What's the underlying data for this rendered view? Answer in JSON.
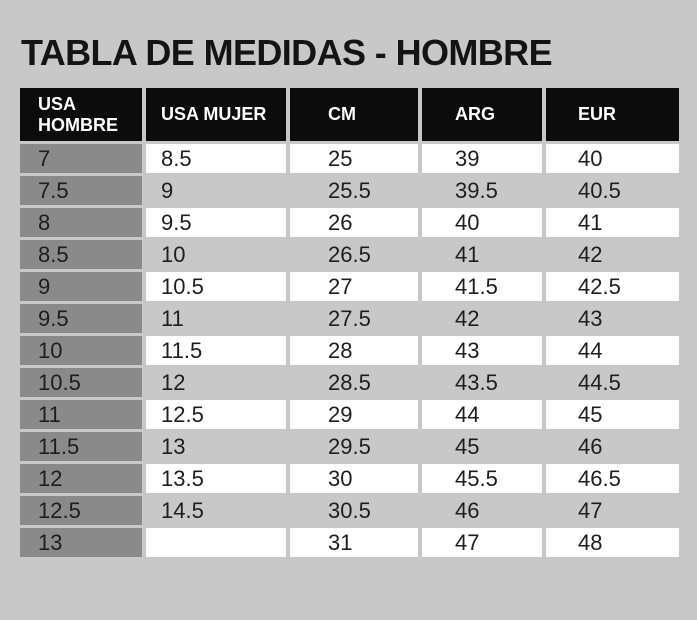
{
  "title": "TABLA DE MEDIDAS - HOMBRE",
  "table": {
    "columns": [
      {
        "label": "USA HOMBRE"
      },
      {
        "label": "USA MUJER"
      },
      {
        "label": "CM"
      },
      {
        "label": "ARG"
      },
      {
        "label": "EUR"
      }
    ],
    "rows": [
      {
        "cells": [
          "7",
          "8.5",
          "25",
          "39",
          "40"
        ]
      },
      {
        "cells": [
          "7.5",
          "9",
          "25.5",
          "39.5",
          "40.5"
        ]
      },
      {
        "cells": [
          "8",
          "9.5",
          "26",
          "40",
          "41"
        ]
      },
      {
        "cells": [
          "8.5",
          "10",
          "26.5",
          "41",
          "42"
        ]
      },
      {
        "cells": [
          "9",
          "10.5",
          "27",
          "41.5",
          "42.5"
        ]
      },
      {
        "cells": [
          "9.5",
          "11",
          "27.5",
          "42",
          "43"
        ]
      },
      {
        "cells": [
          "10",
          "11.5",
          "28",
          "43",
          "44"
        ]
      },
      {
        "cells": [
          "10.5",
          "12",
          "28.5",
          "43.5",
          "44.5"
        ]
      },
      {
        "cells": [
          "11",
          "12.5",
          "29",
          "44",
          "45"
        ]
      },
      {
        "cells": [
          "11.5",
          "13",
          "29.5",
          "45",
          "46"
        ]
      },
      {
        "cells": [
          "12",
          "13.5",
          "30",
          "45.5",
          "46.5"
        ]
      },
      {
        "cells": [
          "12.5",
          "14.5",
          "30.5",
          "46",
          "47"
        ]
      },
      {
        "cells": [
          "13",
          "",
          "31",
          "47",
          "48"
        ]
      }
    ]
  },
  "colors": {
    "page_background": "#c8c8c8",
    "header_background": "#0c0c0c",
    "header_text": "#ffffff",
    "first_column_background": "#8a8a8a",
    "row_white": "#ffffff",
    "row_gray": "#c8c8c8",
    "body_text": "#1e1e1e",
    "title_text": "#141414"
  }
}
